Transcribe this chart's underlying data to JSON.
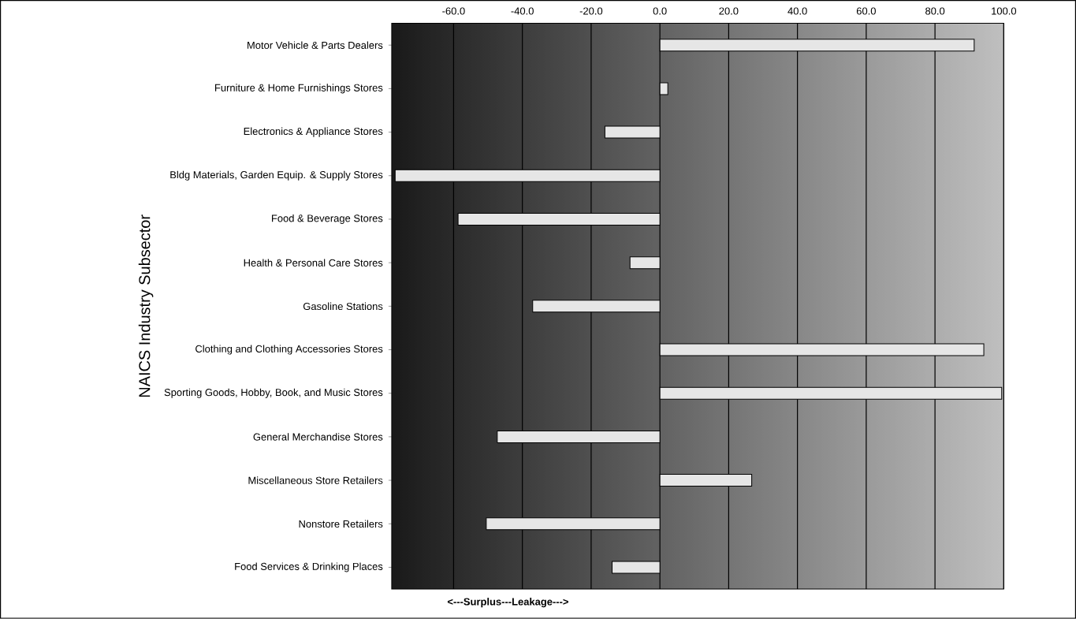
{
  "chart_data": {
    "type": "bar",
    "orientation": "horizontal",
    "ylabel": "NAICS Industry Subsector",
    "xlabel": "<---Surplus---Leakage--->",
    "categories": [
      "Motor Vehicle & Parts Dealers",
      "Furniture & Home Furnishings Stores",
      "Electronics & Appliance Stores",
      "Bldg Materials, Garden Equip. & Supply Stores",
      "Food & Beverage Stores",
      "Health & Personal Care Stores",
      "Gasoline Stations",
      "Clothing and Clothing Accessories Stores",
      "Sporting Goods, Hobby, Book, and Music Stores",
      "General Merchandise Stores",
      "Miscellaneous Store Retailers",
      "Nonstore Retailers",
      "Food Services & Drinking Places"
    ],
    "values": [
      91.4,
      2.3,
      -16,
      -77,
      -58.7,
      -8.7,
      -37,
      94.2,
      99.4,
      -47.3,
      26.7,
      -50.5,
      -13.9
    ],
    "color": "#e6e6e6",
    "xlim": [
      -78,
      100
    ],
    "xticks": [
      {
        "value": -60,
        "label": "-60.0"
      },
      {
        "value": -40,
        "label": "-40.0"
      },
      {
        "value": -20,
        "label": "-20.0"
      },
      {
        "value": 0,
        "label": "0.0"
      },
      {
        "value": 20,
        "label": "20.0"
      },
      {
        "value": 40,
        "label": "40.0"
      },
      {
        "value": 60,
        "label": "60.0"
      },
      {
        "value": 80,
        "label": "80.0"
      },
      {
        "value": 100,
        "label": "100.0"
      }
    ],
    "grid": "x"
  }
}
